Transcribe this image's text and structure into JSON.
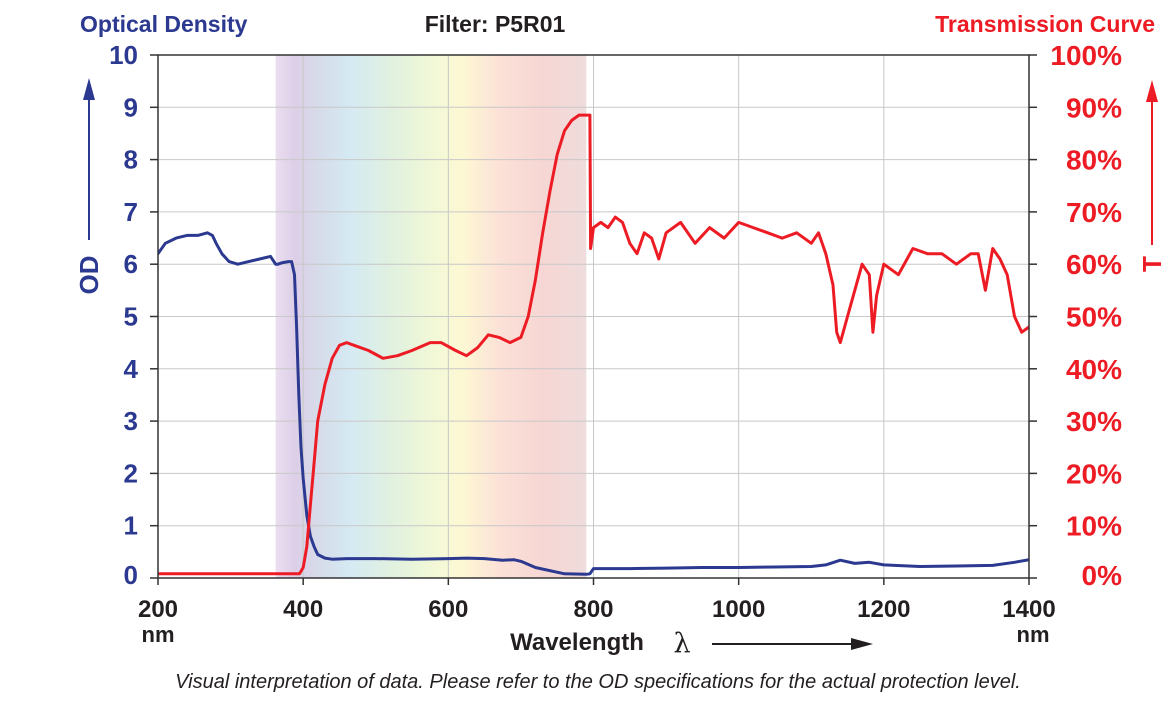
{
  "header": {
    "left_title": "Optical Density",
    "center_title": "Filter: P5R01",
    "right_title": "Transmission Curve"
  },
  "axes": {
    "left_label": "OD",
    "right_label": "T",
    "x_label": "Wavelength",
    "x_symbol": "λ",
    "x_unit_left": "nm",
    "x_unit_right": "nm"
  },
  "footnote": "Visual interpretation of data. Please refer to the OD specifications for the actual protection level.",
  "colors": {
    "od": "#2b3990",
    "transmission": "#ed1c24",
    "grid": "#c8c8c8",
    "axis": "#333333"
  },
  "chart_data": {
    "type": "line",
    "xlim": [
      200,
      1400
    ],
    "ylim_left": [
      0,
      10
    ],
    "ylim_right": [
      0,
      100
    ],
    "x_ticks": [
      "200",
      "400",
      "600",
      "800",
      "1000",
      "1200",
      "1400"
    ],
    "y_left_ticks": [
      "0",
      "1",
      "2",
      "3",
      "4",
      "5",
      "6",
      "7",
      "8",
      "9",
      "10"
    ],
    "y_right_ticks": [
      "0%",
      "10%",
      "20%",
      "30%",
      "40%",
      "50%",
      "60%",
      "70%",
      "80%",
      "90%",
      "100%"
    ],
    "grid": true,
    "visible_spectrum_band": [
      362,
      790
    ],
    "series": [
      {
        "axis": "left",
        "x": [
          200,
          210,
          225,
          240,
          255,
          268,
          275,
          280,
          288,
          298,
          310,
          325,
          340,
          355,
          362,
          365,
          372,
          380,
          384,
          388,
          391,
          394,
          397,
          400,
          405,
          410,
          415,
          420,
          430,
          440,
          460,
          500,
          550,
          600,
          625,
          650,
          675,
          690,
          700,
          720,
          760,
          790,
          795,
          800,
          850,
          900,
          950,
          1000,
          1050,
          1100,
          1120,
          1140,
          1160,
          1180,
          1200,
          1250,
          1300,
          1350,
          1380,
          1400
        ],
        "y": [
          6.2,
          6.4,
          6.5,
          6.55,
          6.55,
          6.6,
          6.55,
          6.4,
          6.2,
          6.05,
          6.0,
          6.05,
          6.1,
          6.15,
          6.0,
          6.0,
          6.03,
          6.05,
          6.05,
          5.8,
          4.8,
          3.5,
          2.5,
          1.9,
          1.2,
          0.8,
          0.6,
          0.45,
          0.38,
          0.36,
          0.37,
          0.37,
          0.36,
          0.37,
          0.38,
          0.37,
          0.34,
          0.35,
          0.32,
          0.2,
          0.08,
          0.07,
          0.08,
          0.18,
          0.18,
          0.19,
          0.2,
          0.2,
          0.21,
          0.22,
          0.25,
          0.34,
          0.28,
          0.3,
          0.25,
          0.22,
          0.23,
          0.24,
          0.3,
          0.35
        ]
      },
      {
        "axis": "right",
        "x": [
          200,
          300,
          395,
          400,
          405,
          410,
          415,
          420,
          430,
          440,
          450,
          460,
          470,
          490,
          510,
          530,
          550,
          575,
          590,
          610,
          625,
          640,
          655,
          670,
          685,
          700,
          710,
          720,
          730,
          740,
          750,
          760,
          770,
          780,
          790,
          795,
          796,
          800,
          810,
          820,
          830,
          840,
          850,
          860,
          870,
          880,
          890,
          900,
          920,
          940,
          960,
          980,
          1000,
          1020,
          1040,
          1060,
          1080,
          1100,
          1110,
          1120,
          1130,
          1135,
          1140,
          1150,
          1160,
          1170,
          1180,
          1185,
          1190,
          1200,
          1220,
          1240,
          1260,
          1280,
          1300,
          1320,
          1330,
          1340,
          1350,
          1360,
          1370,
          1380,
          1390,
          1400
        ],
        "y": [
          0.8,
          0.8,
          0.8,
          2,
          6,
          14,
          22,
          30,
          37,
          42,
          44.5,
          45,
          44.5,
          43.5,
          42,
          42.5,
          43.5,
          45,
          45,
          43.5,
          42.5,
          44,
          46.5,
          46,
          45,
          46,
          50,
          57,
          66,
          74,
          81,
          85.5,
          87.5,
          88.5,
          88.5,
          88.5,
          63,
          67,
          68,
          67,
          69,
          68,
          64,
          62,
          66,
          65,
          61,
          66,
          68,
          64,
          67,
          65,
          68,
          67,
          66,
          65,
          66,
          64,
          66,
          62,
          56,
          47,
          45,
          50,
          55,
          60,
          58,
          47,
          54,
          60,
          58,
          63,
          62,
          62,
          60,
          62,
          62,
          55,
          63,
          61,
          58,
          50,
          47,
          48
        ]
      }
    ]
  }
}
